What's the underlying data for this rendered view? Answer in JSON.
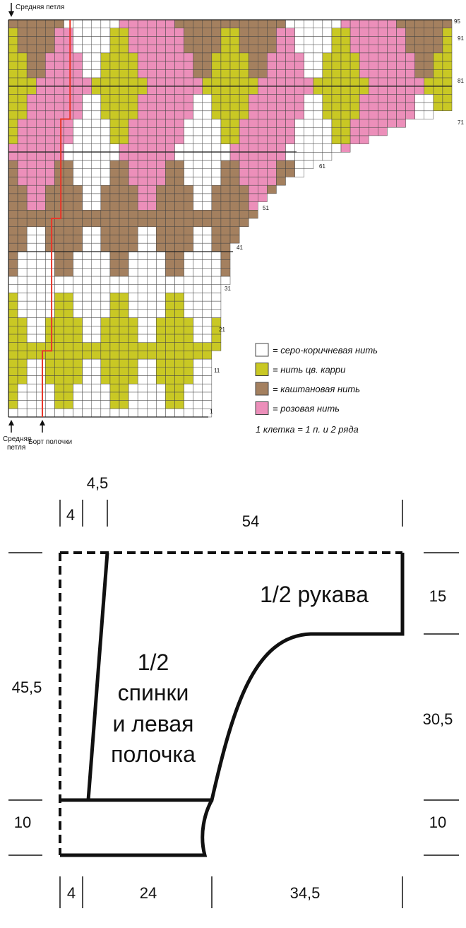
{
  "chart": {
    "top_label": "Средняя петля",
    "bottom_label": [
      "Средняя",
      "петля"
    ],
    "edge_label": "Борт полочки",
    "row_numbers": [
      "95",
      "91",
      "81",
      "71",
      "61",
      "51",
      "41",
      "31",
      "21",
      "11",
      "1"
    ]
  },
  "legend": {
    "items": [
      {
        "color": "#ffffff",
        "label": "= серо-коричневая нить"
      },
      {
        "color": "#c9c824",
        "label": "= нить цв. карри"
      },
      {
        "color": "#a4805f",
        "label": "= каштановая нить"
      },
      {
        "color": "#ec8fba",
        "label": "= розовая нить"
      }
    ],
    "note": "1 клетка = 1 п. и 2 ряда"
  },
  "schematic": {
    "top_dims": [
      "4,5",
      "4",
      "54"
    ],
    "left_dims": [
      "45,5",
      "10"
    ],
    "right_dims": [
      "15",
      "30,5",
      "10"
    ],
    "bottom_dims": [
      "4",
      "24",
      "34,5"
    ],
    "sleeve_label": "1/2 рукава",
    "body_label": [
      "1/2",
      "спинки",
      "и левая",
      "полочка"
    ]
  }
}
